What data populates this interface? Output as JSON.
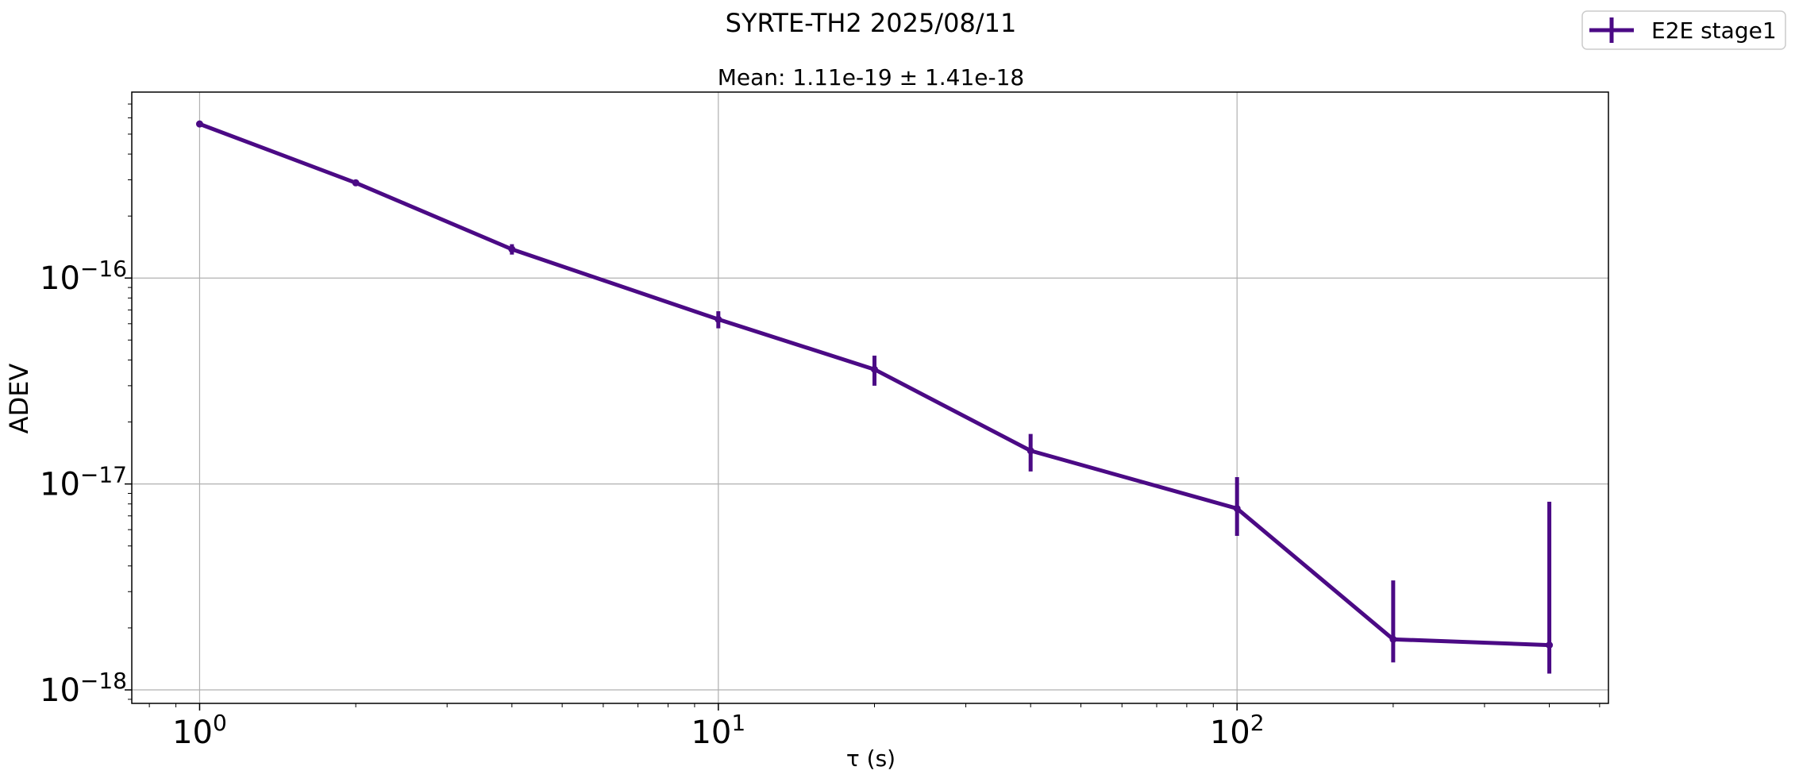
{
  "chart_data": {
    "type": "line",
    "suptitle": "SYRTE-TH2 2025/08/11",
    "title": "Mean: 1.11e-19 ± 1.41e-18",
    "xlabel": "τ (s)",
    "ylabel": "ADEV",
    "xscale": "log",
    "yscale": "log",
    "xlim": [
      0.74,
      520
    ],
    "ylim": [
      8.6e-19,
      8e-16
    ],
    "x_ticks": [
      {
        "value": 1,
        "base": "10",
        "exp": "0"
      },
      {
        "value": 10,
        "base": "10",
        "exp": "1"
      },
      {
        "value": 100,
        "base": "10",
        "exp": "2"
      }
    ],
    "y_ticks": [
      {
        "value": 1e-16,
        "base": "10",
        "exp": "−16"
      },
      {
        "value": 1e-17,
        "base": "10",
        "exp": "−17"
      },
      {
        "value": 1e-18,
        "base": "10",
        "exp": "−18"
      }
    ],
    "grid": true,
    "legend_position": "top-right (outside plot)",
    "series": [
      {
        "name": "E2E stage1",
        "color": "#4b0a85",
        "x": [
          1,
          2,
          4,
          10,
          20,
          40,
          100,
          200,
          400
        ],
        "y": [
          5.6e-16,
          2.9e-16,
          1.38e-16,
          6.3e-17,
          3.6e-17,
          1.45e-17,
          7.6e-18,
          1.76e-18,
          1.65e-18
        ],
        "err_low": [
          1e-17,
          9e-18,
          8e-18,
          6e-18,
          6e-18,
          3e-18,
          2e-18,
          4e-19,
          4.5e-19
        ],
        "err_high": [
          1e-17,
          9e-18,
          8e-18,
          6e-18,
          6e-18,
          3e-18,
          3.2e-18,
          1.64e-18,
          6.55e-18
        ]
      }
    ]
  }
}
